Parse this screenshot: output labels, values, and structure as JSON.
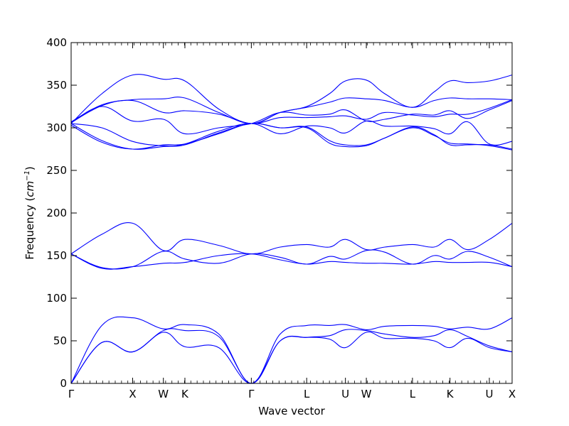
{
  "chart_data": {
    "type": "line",
    "title": "",
    "xlabel": "Wave vector",
    "ylabel_text": "Frequency (",
    "ylabel_unit": "cm",
    "ylabel_exp": "−1",
    "ylabel_close": ")",
    "ylim": [
      0,
      400
    ],
    "yticks": [
      0,
      50,
      100,
      150,
      200,
      250,
      300,
      350,
      400
    ],
    "grid": false,
    "line_color": "#0000ff",
    "x_range": [
      0,
      7.17
    ],
    "high_symmetry_points": [
      {
        "label": "Γ",
        "x": 0
      },
      {
        "label": "X",
        "x": 1.0
      },
      {
        "label": "W",
        "x": 1.5
      },
      {
        "label": "K",
        "x": 1.85
      },
      {
        "label": "Γ",
        "x": 2.93
      },
      {
        "label": "L",
        "x": 3.83
      },
      {
        "label": "U",
        "x": 4.46
      },
      {
        "label": "W",
        "x": 4.8
      },
      {
        "label": "L",
        "x": 5.55
      },
      {
        "label": "K",
        "x": 6.16
      },
      {
        "label": "U",
        "x": 6.8
      },
      {
        "label": "X",
        "x": 7.17
      }
    ],
    "series": [
      {
        "x": [
          0,
          0.5,
          1.0,
          1.5,
          1.85,
          2.4,
          2.93,
          3.4,
          3.83,
          4.2,
          4.46,
          4.8,
          5.1,
          5.55,
          5.9,
          6.16,
          6.45,
          6.8,
          7.17
        ],
        "y": [
          0,
          48,
          37,
          62,
          62,
          55,
          0,
          50,
          54,
          56,
          63,
          62,
          58,
          54,
          56,
          63,
          55,
          44,
          37
        ]
      },
      {
        "x": [
          0,
          0.5,
          1.0,
          1.5,
          1.85,
          2.4,
          2.93,
          3.4,
          3.83,
          4.2,
          4.46,
          4.8,
          5.1,
          5.55,
          5.9,
          6.16,
          6.45,
          6.8,
          7.17
        ],
        "y": [
          0,
          48,
          37,
          60,
          43,
          42,
          0,
          50,
          54,
          52,
          42,
          60,
          53,
          53,
          50,
          42,
          53,
          42,
          37
        ]
      },
      {
        "x": [
          0,
          0.5,
          1.0,
          1.5,
          1.85,
          2.4,
          2.93,
          3.4,
          3.83,
          4.2,
          4.46,
          4.8,
          5.1,
          5.55,
          5.9,
          6.16,
          6.45,
          6.8,
          7.17
        ],
        "y": [
          0,
          68,
          77,
          64,
          69,
          58,
          0,
          58,
          68,
          68,
          69,
          63,
          67,
          68,
          67,
          64,
          66,
          64,
          77
        ]
      },
      {
        "x": [
          0,
          0.5,
          1.0,
          1.5,
          1.85,
          2.4,
          2.93,
          3.4,
          3.83,
          4.2,
          4.46,
          4.8,
          5.1,
          5.55,
          5.9,
          6.16,
          6.45,
          6.8,
          7.17
        ],
        "y": [
          152,
          135,
          137,
          141,
          142,
          150,
          152,
          145,
          140,
          143,
          142,
          141,
          141,
          140,
          143,
          142,
          142,
          142,
          137
        ]
      },
      {
        "x": [
          0,
          0.5,
          1.0,
          1.5,
          1.85,
          2.4,
          2.93,
          3.4,
          3.83,
          4.2,
          4.46,
          4.8,
          5.1,
          5.55,
          5.9,
          6.16,
          6.45,
          6.8,
          7.17
        ],
        "y": [
          152,
          136,
          137,
          155,
          146,
          141,
          152,
          148,
          140,
          149,
          146,
          156,
          154,
          140,
          150,
          146,
          155,
          148,
          137
        ]
      },
      {
        "x": [
          0,
          0.5,
          1.0,
          1.5,
          1.85,
          2.4,
          2.93,
          3.4,
          3.83,
          4.2,
          4.46,
          4.8,
          5.1,
          5.55,
          5.9,
          6.16,
          6.45,
          6.8,
          7.17
        ],
        "y": [
          152,
          175,
          188,
          156,
          169,
          162,
          152,
          160,
          163,
          160,
          169,
          157,
          160,
          163,
          160,
          169,
          157,
          169,
          188
        ]
      },
      {
        "x": [
          0,
          0.5,
          1.0,
          1.5,
          1.85,
          2.4,
          2.93,
          3.4,
          3.83,
          4.2,
          4.46,
          4.8,
          5.1,
          5.55,
          5.9,
          6.16,
          6.45,
          6.8,
          7.17
        ],
        "y": [
          305,
          285,
          275,
          278,
          280,
          294,
          305,
          300,
          301,
          285,
          280,
          280,
          288,
          301,
          292,
          280,
          280,
          280,
          275
        ]
      },
      {
        "x": [
          0,
          0.5,
          1.0,
          1.5,
          1.85,
          2.4,
          2.93,
          3.4,
          3.83,
          4.2,
          4.46,
          4.8,
          5.1,
          5.55,
          5.9,
          6.16,
          6.45,
          6.8,
          7.17
        ],
        "y": [
          303,
          283,
          275,
          280,
          281,
          293,
          305,
          300,
          300,
          282,
          278,
          279,
          288,
          300,
          291,
          282,
          281,
          279,
          274
        ]
      },
      {
        "x": [
          0,
          0.5,
          1.0,
          1.5,
          1.85,
          2.4,
          2.93,
          3.4,
          3.83,
          4.2,
          4.46,
          4.8,
          5.1,
          5.55,
          5.9,
          6.16,
          6.45,
          6.8,
          7.17
        ],
        "y": [
          305,
          300,
          284,
          279,
          281,
          296,
          305,
          293,
          302,
          300,
          294,
          308,
          302,
          302,
          299,
          293,
          307,
          281,
          284
        ]
      },
      {
        "x": [
          0,
          0.5,
          1.0,
          1.5,
          1.85,
          2.4,
          2.93,
          3.4,
          3.83,
          4.2,
          4.46,
          4.8,
          5.1,
          5.55,
          5.9,
          6.16,
          6.45,
          6.8,
          7.17
        ],
        "y": [
          306,
          325,
          308,
          310,
          293,
          300,
          305,
          318,
          315,
          316,
          321,
          308,
          310,
          316,
          315,
          320,
          311,
          321,
          332
        ]
      },
      {
        "x": [
          0,
          0.5,
          1.0,
          1.5,
          1.85,
          2.4,
          2.93,
          3.4,
          3.83,
          4.2,
          4.46,
          4.8,
          5.1,
          5.55,
          5.9,
          6.16,
          6.45,
          6.8,
          7.17
        ],
        "y": [
          306,
          326,
          332,
          318,
          320,
          316,
          305,
          312,
          312,
          313,
          314,
          310,
          318,
          315,
          313,
          316,
          316,
          323,
          333
        ]
      },
      {
        "x": [
          0,
          0.5,
          1.0,
          1.5,
          1.85,
          2.4,
          2.93,
          3.4,
          3.83,
          4.2,
          4.46,
          4.8,
          5.1,
          5.55,
          5.9,
          6.16,
          6.45,
          6.8,
          7.17
        ],
        "y": [
          307,
          327,
          333,
          334,
          335,
          318,
          305,
          318,
          324,
          330,
          335,
          334,
          332,
          324,
          332,
          335,
          334,
          334,
          333
        ]
      },
      {
        "x": [
          0,
          0.5,
          1.0,
          1.5,
          1.85,
          2.4,
          2.93,
          3.4,
          3.83,
          4.2,
          4.46,
          4.8,
          5.1,
          5.55,
          5.9,
          6.16,
          6.45,
          6.8,
          7.17
        ],
        "y": [
          305,
          340,
          362,
          357,
          355,
          322,
          305,
          318,
          325,
          340,
          355,
          356,
          340,
          324,
          342,
          355,
          353,
          355,
          362
        ]
      }
    ]
  }
}
